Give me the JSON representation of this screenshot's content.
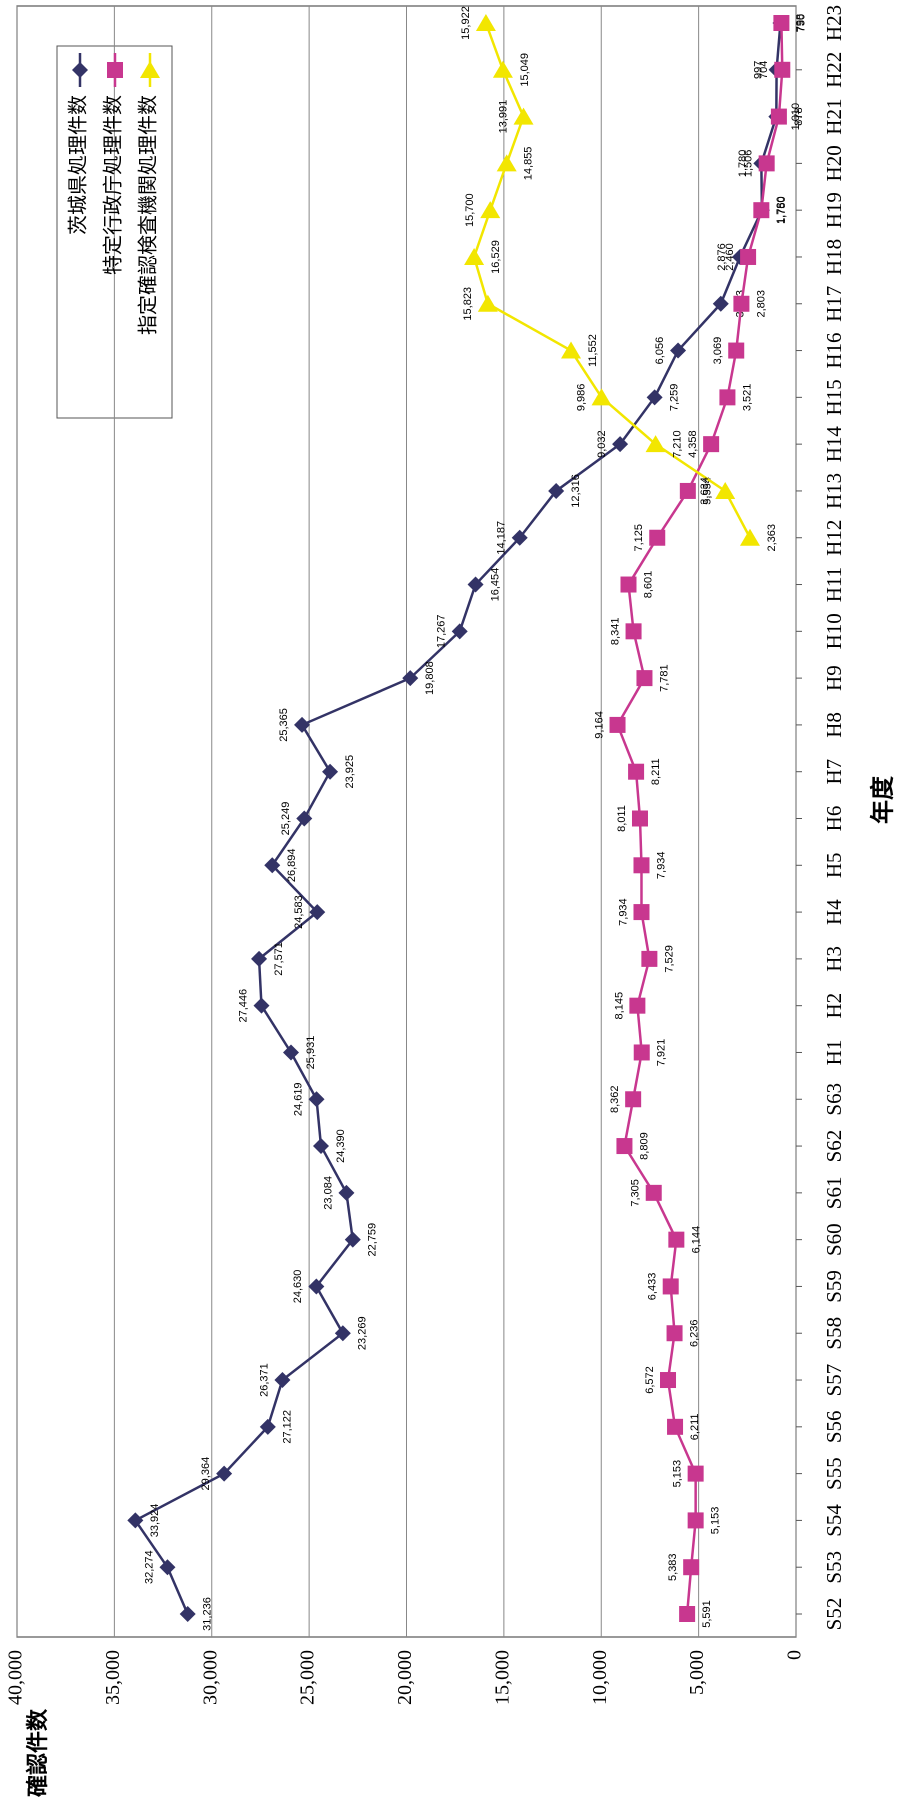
{
  "chart_data": {
    "type": "line",
    "x_label": "年度",
    "y_label": "確認件数",
    "categories": [
      "S52",
      "S53",
      "S54",
      "S55",
      "S56",
      "S57",
      "S58",
      "S59",
      "S60",
      "S61",
      "S62",
      "S63",
      "H1",
      "H2",
      "H3",
      "H4",
      "H5",
      "H6",
      "H7",
      "H8",
      "H9",
      "H10",
      "H11",
      "H12",
      "H13",
      "H14",
      "H15",
      "H16",
      "H17",
      "H18",
      "H19",
      "H20",
      "H21",
      "H22",
      "H23"
    ],
    "ylim": [
      0,
      40000
    ],
    "yticks": [
      0,
      {
        "value": 5000,
        "label": "5,000"
      },
      {
        "value": 10000,
        "label": "10,000"
      },
      {
        "value": 15000,
        "label": "15,000"
      },
      {
        "value": 20000,
        "label": "20,000"
      },
      {
        "value": 25000,
        "label": "25,000"
      },
      {
        "value": 30000,
        "label": "30,000"
      },
      {
        "value": 35000,
        "label": "35,000"
      },
      {
        "value": 40000,
        "label": "40,000"
      }
    ],
    "grid": true,
    "legend": "upper-right",
    "series": [
      {
        "name": "茨城県処理件数",
        "color": "#333366",
        "marker": "diamond",
        "values": [
          31236,
          32274,
          33924,
          29364,
          27122,
          26371,
          23269,
          24630,
          22759,
          23084,
          24390,
          24619,
          25931,
          27446,
          27571,
          24583,
          26894,
          25249,
          23925,
          25365,
          19808,
          17267,
          16454,
          14187,
          12316,
          9032,
          7259,
          6056,
          3863,
          2876,
          1750,
          1780,
          1010,
          997,
          798
        ],
        "value_labels": [
          "31,236",
          "32,274",
          "33,924",
          "29,364",
          "27,122",
          "26,371",
          "23,269",
          "24,630",
          "22,759",
          "23,084",
          "24,390",
          "24,619",
          "25,931",
          "27,446",
          "27,571",
          "24,583",
          "26,894",
          "25,249",
          "23,925",
          "25,365",
          "19,808",
          "17,267",
          "16,454",
          "14,187",
          "12,316",
          "9,032",
          "7,259",
          "6,056",
          "3,863",
          "2,876",
          "1,750",
          "1,780",
          "1,010",
          "997",
          "798"
        ]
      },
      {
        "name": "特定行政庁処理件数",
        "color": "#c8378f",
        "marker": "square",
        "values": [
          5591,
          5383,
          5153,
          5153,
          6211,
          6572,
          6236,
          6433,
          6144,
          7305,
          8809,
          8362,
          7921,
          8145,
          7529,
          7934,
          7934,
          8011,
          8211,
          9164,
          7781,
          8341,
          8601,
          7125,
          5554,
          4358,
          3521,
          3069,
          2803,
          2460,
          1780,
          1506,
          878,
          704,
          750
        ],
        "value_labels": [
          "5,591",
          "5,383",
          "5,153",
          "5,153",
          "6,211",
          "6,572",
          "6,236",
          "6,433",
          "6,144",
          "7,305",
          "8,809",
          "8,362",
          "7,921",
          "8,145",
          "7,529",
          "7,934",
          "7,934",
          "8,011",
          "8,211",
          "9,164",
          "7,781",
          "8,341",
          "8,601",
          "7,125",
          "5,554",
          "4,358",
          "3,521",
          "3,069",
          "2,803",
          "2,460",
          "1,780",
          "1,506",
          "878",
          "704",
          "750"
        ]
      },
      {
        "name": "指定確認検査機関処理件数",
        "color": "#f2e600",
        "marker": "triangle",
        "values": [
          null,
          null,
          null,
          null,
          null,
          null,
          null,
          null,
          null,
          null,
          null,
          null,
          null,
          null,
          null,
          null,
          null,
          null,
          null,
          null,
          null,
          null,
          null,
          2363,
          3634,
          7210,
          9986,
          11552,
          15823,
          16529,
          15700,
          14855,
          13991,
          15049,
          15922
        ],
        "value_labels": [
          null,
          null,
          null,
          null,
          null,
          null,
          null,
          null,
          null,
          null,
          null,
          null,
          null,
          null,
          null,
          null,
          null,
          null,
          null,
          null,
          null,
          null,
          null,
          "2,363",
          "3,634",
          "7,210",
          "9,986",
          "11,552",
          "15,823",
          "16,529",
          "15,700",
          "14,855",
          "13,991",
          "15,049",
          "15,922"
        ]
      }
    ]
  }
}
